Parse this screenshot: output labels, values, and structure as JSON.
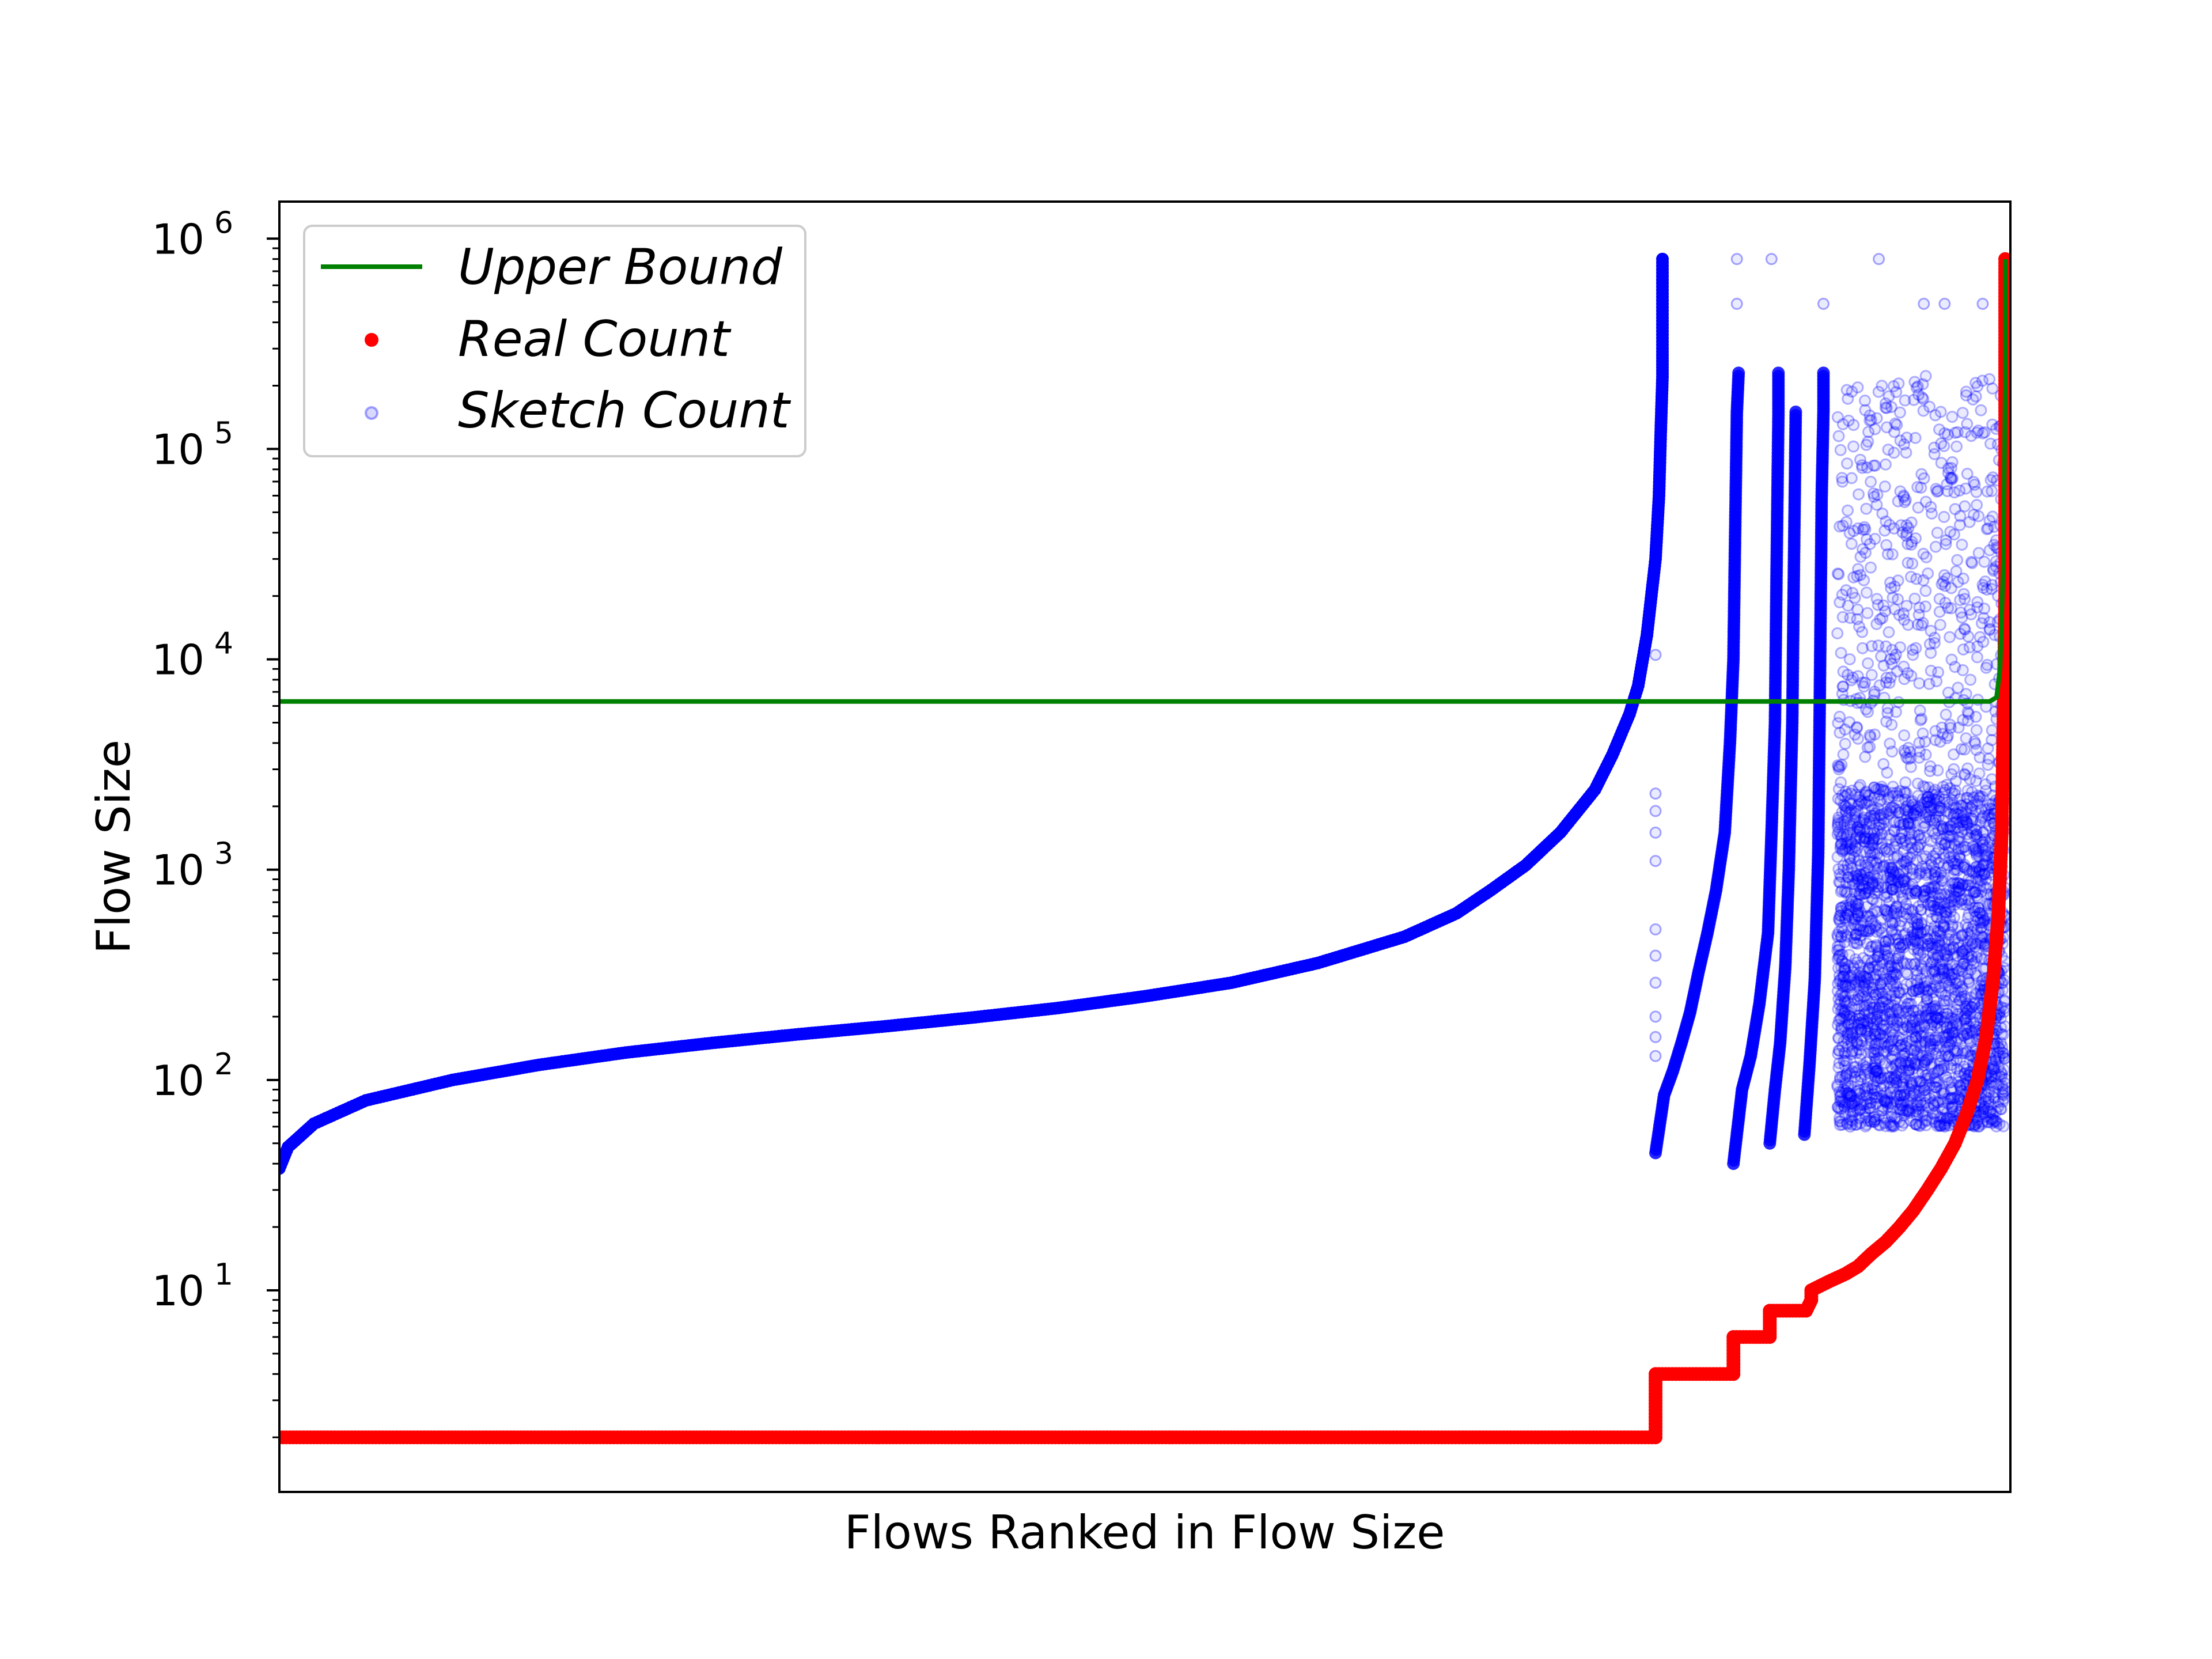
{
  "chart_data": {
    "type": "scatter",
    "title": "",
    "xlabel": "Flows Ranked in Flow Size",
    "ylabel": "Flow Size",
    "yscale": "log",
    "ylim": [
      1.1,
      1500000
    ],
    "xlim": [
      0,
      1
    ],
    "xticks": "none",
    "yticks": [
      {
        "base": "10",
        "exp": "1",
        "value": 10
      },
      {
        "base": "10",
        "exp": "2",
        "value": 100
      },
      {
        "base": "10",
        "exp": "3",
        "value": 1000
      },
      {
        "base": "10",
        "exp": "4",
        "value": 10000
      },
      {
        "base": "10",
        "exp": "5",
        "value": 100000
      },
      {
        "base": "10",
        "exp": "6",
        "value": 1000000
      }
    ],
    "grid": false,
    "legend": {
      "placement": "top-left",
      "entries": [
        {
          "label": "Upper Bound",
          "color": "#008000",
          "marker": "line"
        },
        {
          "label": "Real Count",
          "color": "#ff0000",
          "marker": "dot"
        },
        {
          "label": "Sketch Count",
          "color": "#0000ff",
          "marker": "hollow-circle"
        }
      ]
    },
    "series": [
      {
        "name": "Upper Bound",
        "kind": "line",
        "color": "#008000",
        "points": [
          [
            0,
            6300
          ],
          [
            0.988,
            6300
          ],
          [
            0.992,
            6600
          ],
          [
            0.994,
            9000
          ],
          [
            0.996,
            30000
          ],
          [
            0.997,
            200000
          ],
          [
            0.997,
            800000
          ]
        ]
      },
      {
        "name": "Real Count",
        "kind": "scatter",
        "color": "#ff0000",
        "points": [
          [
            0,
            2
          ],
          [
            0.795,
            2
          ],
          [
            0.795,
            3
          ],
          [
            0.795,
            4
          ],
          [
            0.84,
            4
          ],
          [
            0.84,
            5
          ],
          [
            0.84,
            6
          ],
          [
            0.861,
            6
          ],
          [
            0.861,
            7
          ],
          [
            0.861,
            8
          ],
          [
            0.882,
            8
          ],
          [
            0.885,
            9
          ],
          [
            0.885,
            10
          ],
          [
            0.895,
            11
          ],
          [
            0.905,
            12
          ],
          [
            0.912,
            13
          ],
          [
            0.92,
            15
          ],
          [
            0.928,
            17
          ],
          [
            0.936,
            20
          ],
          [
            0.944,
            24
          ],
          [
            0.952,
            30
          ],
          [
            0.96,
            38
          ],
          [
            0.968,
            50
          ],
          [
            0.975,
            70
          ],
          [
            0.981,
            100
          ],
          [
            0.986,
            160
          ],
          [
            0.99,
            300
          ],
          [
            0.993,
            600
          ],
          [
            0.995,
            1500
          ],
          [
            0.996,
            5000
          ],
          [
            0.997,
            20000
          ],
          [
            0.997,
            100000
          ],
          [
            0.997,
            220000
          ],
          [
            0.997,
            290000
          ],
          [
            0.997,
            800000
          ]
        ]
      },
      {
        "name": "Sketch Count",
        "kind": "scatter",
        "color": "#0000ff",
        "segments": [
          {
            "points": [
              [
                0,
                38
              ],
              [
                0.005,
                48
              ],
              [
                0.02,
                62
              ],
              [
                0.05,
                80
              ],
              [
                0.1,
                100
              ],
              [
                0.15,
                118
              ],
              [
                0.2,
                135
              ],
              [
                0.25,
                150
              ],
              [
                0.3,
                165
              ],
              [
                0.35,
                180
              ],
              [
                0.4,
                198
              ],
              [
                0.45,
                220
              ],
              [
                0.5,
                250
              ],
              [
                0.55,
                290
              ],
              [
                0.6,
                360
              ],
              [
                0.65,
                480
              ],
              [
                0.68,
                620
              ],
              [
                0.7,
                800
              ],
              [
                0.72,
                1050
              ],
              [
                0.74,
                1500
              ],
              [
                0.76,
                2400
              ],
              [
                0.77,
                3500
              ],
              [
                0.78,
                5500
              ],
              [
                0.785,
                7500
              ],
              [
                0.79,
                13000
              ],
              [
                0.795,
                30000
              ],
              [
                0.797,
                60000
              ],
              [
                0.798,
                120000
              ],
              [
                0.799,
                220000
              ],
              [
                0.799,
                290000
              ],
              [
                0.799,
                490000
              ],
              [
                0.799,
                800000
              ]
            ]
          },
          {
            "points": [
              [
                0.795,
                45
              ],
              [
                0.8,
                85
              ],
              [
                0.805,
                110
              ],
              [
                0.81,
                150
              ],
              [
                0.815,
                210
              ],
              [
                0.82,
                330
              ],
              [
                0.825,
                500
              ],
              [
                0.83,
                800
              ],
              [
                0.835,
                1500
              ],
              [
                0.838,
                4000
              ],
              [
                0.84,
                10000
              ],
              [
                0.841,
                40000
              ],
              [
                0.842,
                150000
              ],
              [
                0.843,
                230000
              ]
            ]
          },
          {
            "points": [
              [
                0.84,
                40
              ],
              [
                0.845,
                90
              ],
              [
                0.85,
                130
              ],
              [
                0.855,
                230
              ],
              [
                0.86,
                500
              ],
              [
                0.862,
                1500
              ],
              [
                0.864,
                5000
              ],
              [
                0.865,
                30000
              ],
              [
                0.866,
                150000
              ],
              [
                0.866,
                230000
              ]
            ]
          },
          {
            "points": [
              [
                0.861,
                50
              ],
              [
                0.864,
                90
              ],
              [
                0.867,
                150
              ],
              [
                0.87,
                350
              ],
              [
                0.872,
                1000
              ],
              [
                0.874,
                5000
              ],
              [
                0.875,
                30000
              ],
              [
                0.876,
                150000
              ]
            ]
          },
          {
            "points": [
              [
                0.881,
                55
              ],
              [
                0.884,
                120
              ],
              [
                0.887,
                300
              ],
              [
                0.889,
                1200
              ],
              [
                0.89,
                8000
              ],
              [
                0.891,
                60000
              ],
              [
                0.892,
                150000
              ],
              [
                0.892,
                230000
              ]
            ]
          }
        ],
        "scatter_outliers": [
          [
            0.842,
            800000
          ],
          [
            0.862,
            800000
          ],
          [
            0.924,
            800000
          ],
          [
            0.842,
            490000
          ],
          [
            0.892,
            490000
          ],
          [
            0.95,
            490000
          ],
          [
            0.962,
            490000
          ],
          [
            0.984,
            490000
          ],
          [
            0.795,
            10500
          ],
          [
            0.795,
            2300
          ],
          [
            0.795,
            1900
          ],
          [
            0.795,
            1500
          ],
          [
            0.795,
            1100
          ],
          [
            0.795,
            520
          ],
          [
            0.795,
            390
          ],
          [
            0.795,
            290
          ],
          [
            0.795,
            200
          ],
          [
            0.795,
            160
          ],
          [
            0.795,
            130
          ]
        ],
        "dense_region": {
          "x_range": [
            0.9,
            0.997
          ],
          "y_range": [
            55,
            230000
          ]
        }
      }
    ]
  }
}
